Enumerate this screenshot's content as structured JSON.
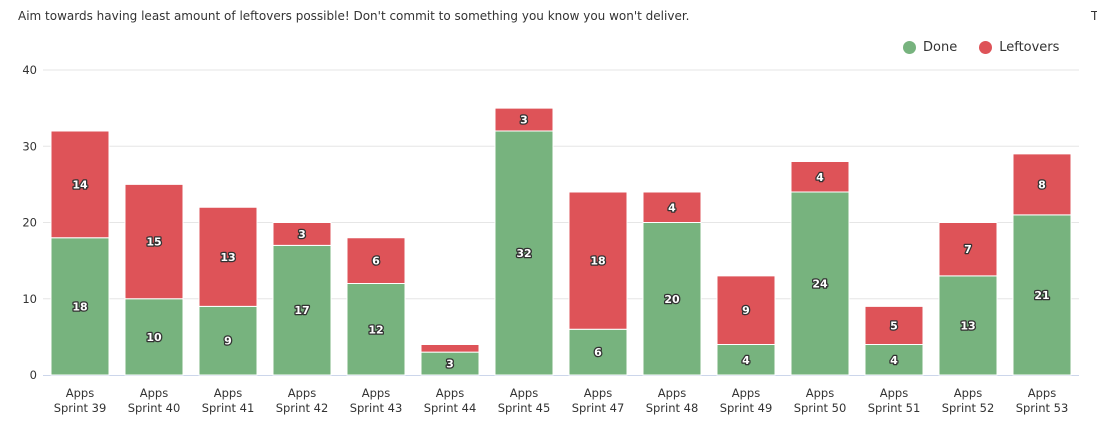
{
  "header": {
    "subtitle": "Aim towards having least amount of leftovers possible! Don't commit to something you know you won't deliver.",
    "corner_mark": "T"
  },
  "colors": {
    "done": "#77b37e",
    "leftovers": "#de5358",
    "grid": "#e6e6e6",
    "axis": "#ccd6eb"
  },
  "chart_data": {
    "type": "bar",
    "stacked": true,
    "categories": [
      [
        "Apps",
        "Sprint 39"
      ],
      [
        "Apps",
        "Sprint 40"
      ],
      [
        "Apps",
        "Sprint 41"
      ],
      [
        "Apps",
        "Sprint 42"
      ],
      [
        "Apps",
        "Sprint 43"
      ],
      [
        "Apps",
        "Sprint 44"
      ],
      [
        "Apps",
        "Sprint 45"
      ],
      [
        "Apps",
        "Sprint 47"
      ],
      [
        "Apps",
        "Sprint 48"
      ],
      [
        "Apps",
        "Sprint 49"
      ],
      [
        "Apps",
        "Sprint 50"
      ],
      [
        "Apps",
        "Sprint 51"
      ],
      [
        "Apps",
        "Sprint 52"
      ],
      [
        "Apps",
        "Sprint 53"
      ]
    ],
    "series": [
      {
        "name": "Done",
        "color": "#77b37e",
        "values": [
          18,
          10,
          9,
          17,
          12,
          3,
          32,
          6,
          20,
          4,
          24,
          4,
          13,
          21
        ]
      },
      {
        "name": "Leftovers",
        "color": "#de5358",
        "values": [
          14,
          15,
          13,
          3,
          6,
          1,
          3,
          18,
          4,
          9,
          4,
          5,
          7,
          8
        ]
      }
    ],
    "data_labels": {
      "Done": [
        "18",
        "10",
        "9",
        "17",
        "12",
        "3",
        "32",
        "6",
        "20",
        "4",
        "24",
        "4",
        "13",
        "21"
      ],
      "Leftovers": [
        "14",
        "15",
        "13",
        "3",
        "6",
        "",
        "3",
        "18",
        "4",
        "9",
        "4",
        "5",
        "7",
        "8"
      ]
    },
    "ylim": [
      0,
      40
    ],
    "yticks": [
      "0",
      "10",
      "20",
      "30",
      "40"
    ],
    "grid": true,
    "legend_position": "top-right"
  }
}
